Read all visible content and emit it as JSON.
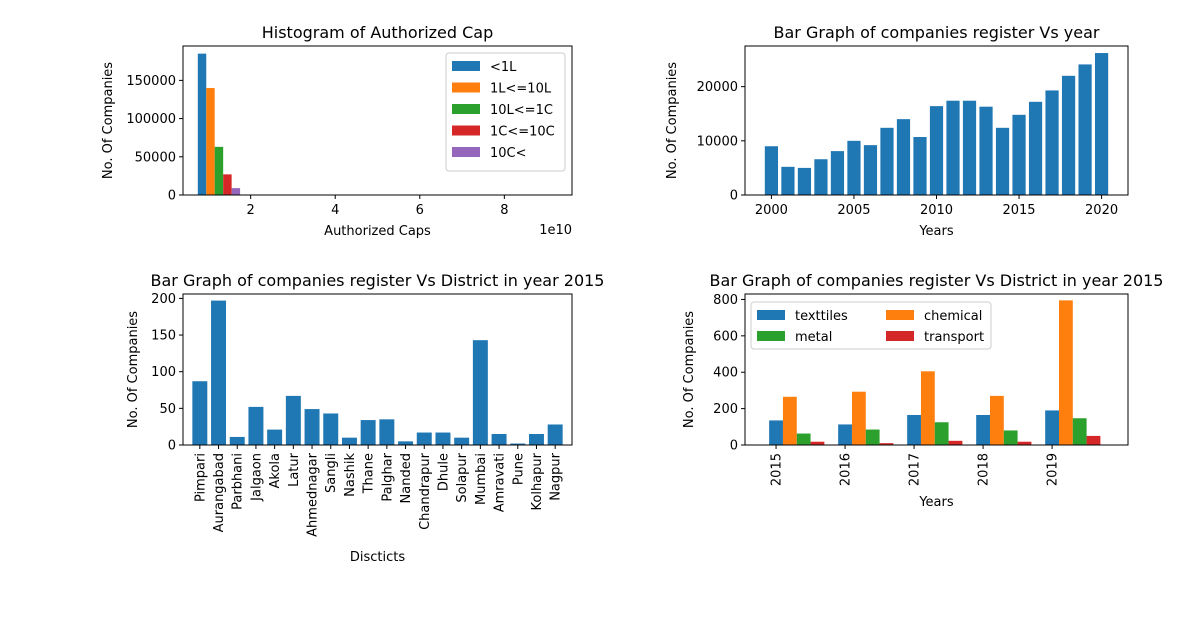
{
  "chart_data": [
    {
      "type": "bar",
      "title": "Histogram of Authorized Cap",
      "xlabel": "Authorized Caps",
      "ylabel": "No. Of Companies",
      "x_offset_text": "1e10",
      "xlim": [
        0.4,
        9.6
      ],
      "ylim": [
        0,
        195000
      ],
      "xticks": [
        2,
        4,
        6,
        8
      ],
      "yticks": [
        0,
        50000,
        100000,
        150000
      ],
      "bar_width": 0.2,
      "legend_position": "top-right",
      "series": [
        {
          "name": "<1L",
          "x": 0.85,
          "value": 185000,
          "color": "#1f77b4"
        },
        {
          "name": "1L<=10L",
          "x": 1.05,
          "value": 140000,
          "color": "#ff7f0e"
        },
        {
          "name": "10L<=1C",
          "x": 1.25,
          "value": 63000,
          "color": "#2ca02c"
        },
        {
          "name": "1C<=10C",
          "x": 1.45,
          "value": 27000,
          "color": "#d62728"
        },
        {
          "name": "10C<",
          "x": 1.65,
          "value": 9000,
          "color": "#9467bd"
        }
      ]
    },
    {
      "type": "bar",
      "title": "Bar Graph of companies register Vs year",
      "xlabel": "Years",
      "ylabel": "No. Of Companies",
      "xlim": [
        1998.4,
        2021.6
      ],
      "ylim": [
        0,
        27500
      ],
      "xticks": [
        2000,
        2005,
        2010,
        2015,
        2020
      ],
      "yticks": [
        0,
        10000,
        20000
      ],
      "bar_width": 0.8,
      "color": "#1f77b4",
      "x": [
        2000,
        2001,
        2002,
        2003,
        2004,
        2005,
        2006,
        2007,
        2008,
        2009,
        2010,
        2011,
        2012,
        2013,
        2014,
        2015,
        2016,
        2017,
        2018,
        2019,
        2020
      ],
      "values": [
        9000,
        5200,
        5000,
        6600,
        8100,
        10000,
        9200,
        12400,
        14000,
        10700,
        16400,
        17400,
        17400,
        16300,
        12400,
        14800,
        17200,
        19300,
        22000,
        24100,
        26200
      ]
    },
    {
      "type": "bar",
      "title": "Bar Graph of companies register Vs District in year 2015",
      "xlabel": "Discticts",
      "ylabel": "No. Of Companies",
      "ylim": [
        0,
        206
      ],
      "yticks": [
        0,
        50,
        100,
        150,
        200
      ],
      "color": "#1f77b4",
      "categories": [
        "Pimpari",
        "Aurangabad",
        "Parbhani",
        "Jalgaon",
        "Akola",
        "Latur",
        "Ahmednagar",
        "Sangli",
        "Nashik",
        "Thane",
        "Palghar",
        "Nanded",
        "Chandrapur",
        "Dhule",
        "Solapur",
        "Mumbai",
        "Amravati",
        "Pune",
        "Kolhapur",
        "Nagpur"
      ],
      "values": [
        87,
        197,
        11,
        52,
        21,
        67,
        49,
        43,
        10,
        34,
        35,
        5,
        17,
        17,
        10,
        143,
        15,
        2,
        15,
        28
      ]
    },
    {
      "type": "bar",
      "title": "Bar Graph of companies register Vs District in year 2015",
      "xlabel": "Years",
      "ylabel": "No. Of Companies",
      "ylim": [
        0,
        830
      ],
      "yticks": [
        0,
        200,
        400,
        600,
        800
      ],
      "categories": [
        "2015",
        "2016",
        "2017",
        "2018",
        "2019"
      ],
      "legend_position": "top-left",
      "series": [
        {
          "name": "texttiles",
          "color": "#1f77b4",
          "values": [
            135,
            113,
            165,
            165,
            190
          ]
        },
        {
          "name": "chemical",
          "color": "#ff7f0e",
          "values": [
            265,
            293,
            405,
            270,
            795
          ]
        },
        {
          "name": "metal",
          "color": "#2ca02c",
          "values": [
            63,
            85,
            125,
            80,
            147
          ]
        },
        {
          "name": "transport",
          "color": "#d62728",
          "values": [
            18,
            10,
            23,
            18,
            50
          ]
        }
      ]
    }
  ]
}
